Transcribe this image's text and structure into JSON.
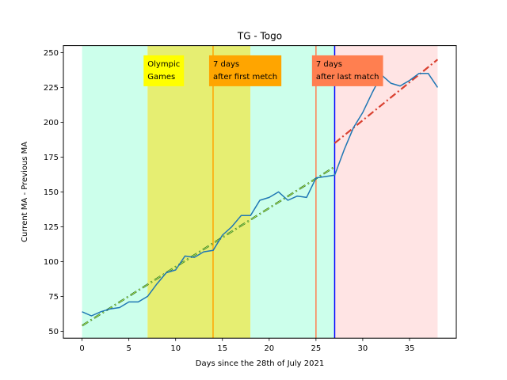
{
  "chart_data": {
    "type": "line",
    "title": "TG - Togo",
    "xlabel": "Days since the 28th of July 2021",
    "ylabel": "Current MA - Previous MA",
    "xlim": [
      -2,
      40
    ],
    "ylim": [
      45,
      255
    ],
    "xticks": [
      0,
      5,
      10,
      15,
      20,
      25,
      30,
      35
    ],
    "yticks": [
      50,
      75,
      100,
      125,
      150,
      175,
      200,
      225,
      250
    ],
    "grid": false,
    "regions": [
      {
        "name": "pre-olympics",
        "x0": 0,
        "x1": 7,
        "color": "#ccffeb"
      },
      {
        "name": "olympic-games",
        "x0": 7,
        "x1": 18,
        "color": "#e6ee72"
      },
      {
        "name": "post-olympics",
        "x0": 18,
        "x1": 27,
        "color": "#ccffeb"
      },
      {
        "name": "after-last-match",
        "x0": 27,
        "x1": 38,
        "color": "#ffe4e4"
      }
    ],
    "vlines": [
      {
        "name": "first-match-line",
        "x": 14,
        "color": "#ffa500"
      },
      {
        "name": "last-match-line",
        "x": 25,
        "color": "#ff7f50"
      },
      {
        "name": "cutoff-line",
        "x": 27,
        "color": "#0000ff"
      }
    ],
    "series": [
      {
        "color": "#1f77b4",
        "x": [
          0,
          1,
          2,
          3,
          4,
          5,
          6,
          7,
          8,
          9,
          10,
          11,
          12,
          13,
          14,
          15,
          16,
          17,
          18,
          19,
          20,
          21,
          22,
          23,
          24,
          25,
          26,
          27,
          28,
          29,
          30,
          31,
          32,
          33,
          34,
          35,
          36,
          37,
          38
        ],
        "y": [
          64,
          61,
          64,
          66,
          67,
          71,
          71,
          75,
          84,
          92,
          94,
          104,
          103,
          107,
          108,
          119,
          125,
          133,
          133,
          144,
          146,
          150,
          144,
          147,
          146,
          160,
          161,
          162,
          180,
          196,
          207,
          221,
          234,
          228,
          226,
          230,
          235,
          235,
          225
        ]
      }
    ],
    "trendlines": [
      {
        "name": "pre-trend",
        "x": [
          0,
          27
        ],
        "y": [
          54,
          168
        ],
        "color": "#1a5c1a",
        "inner_color": "#b2ee58"
      },
      {
        "name": "post-trend",
        "x": [
          27,
          38
        ],
        "y": [
          185,
          245
        ],
        "color": "#d94030"
      }
    ],
    "annotations": [
      {
        "name": "olympic-games-label",
        "lines": [
          "Olympic",
          "Games"
        ],
        "color": "#ffff00",
        "x": 7,
        "y_top": 248
      },
      {
        "name": "first-match-label",
        "lines": [
          "7 days",
          "after first metch"
        ],
        "color": "#ffa500",
        "x": 14,
        "y_top": 248
      },
      {
        "name": "last-match-label",
        "lines": [
          "7 days",
          "after last match"
        ],
        "color": "#ff7f50",
        "x": 25,
        "y_top": 248
      }
    ]
  }
}
